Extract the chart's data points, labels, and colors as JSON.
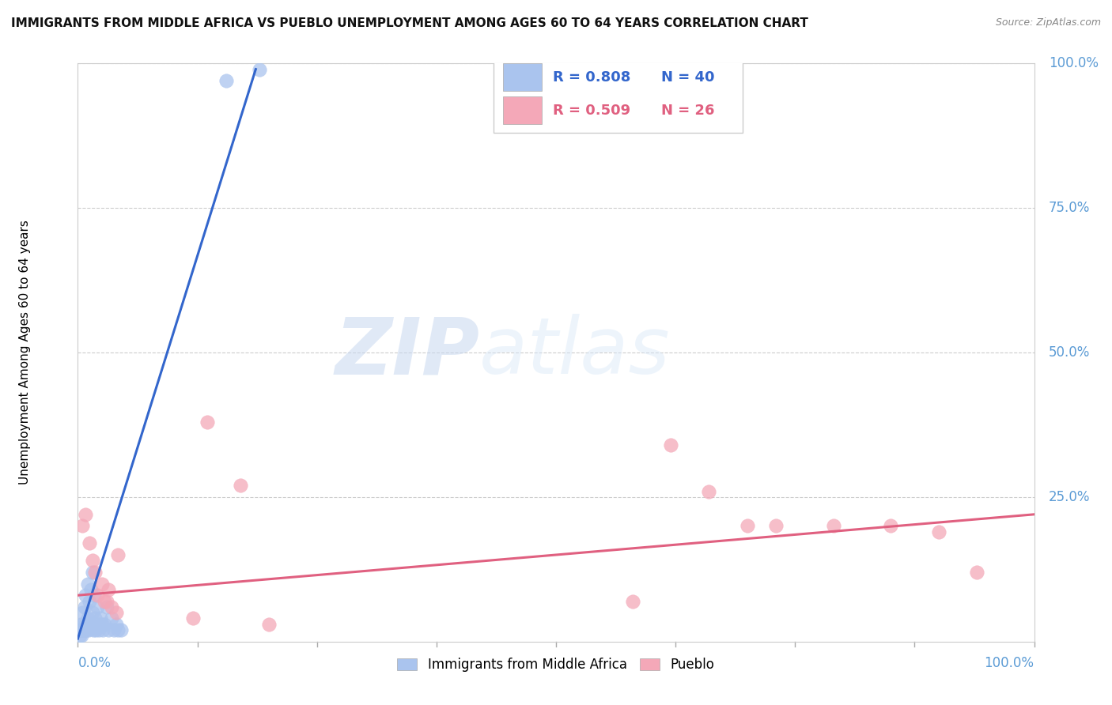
{
  "title": "IMMIGRANTS FROM MIDDLE AFRICA VS PUEBLO UNEMPLOYMENT AMONG AGES 60 TO 64 YEARS CORRELATION CHART",
  "source": "Source: ZipAtlas.com",
  "ylabel": "Unemployment Among Ages 60 to 64 years",
  "blue_R": 0.808,
  "blue_N": 40,
  "pink_R": 0.509,
  "pink_N": 26,
  "blue_color": "#aac4ee",
  "pink_color": "#f4a8b8",
  "blue_line_color": "#3366cc",
  "pink_line_color": "#e06080",
  "legend_blue_label": "Immigrants from Middle Africa",
  "legend_pink_label": "Pueblo",
  "blue_scatter_x": [
    0.002,
    0.003,
    0.003,
    0.004,
    0.004,
    0.005,
    0.005,
    0.006,
    0.007,
    0.008,
    0.008,
    0.009,
    0.01,
    0.01,
    0.011,
    0.012,
    0.013,
    0.014,
    0.015,
    0.015,
    0.016,
    0.017,
    0.018,
    0.019,
    0.02,
    0.021,
    0.022,
    0.024,
    0.025,
    0.026,
    0.028,
    0.03,
    0.032,
    0.035,
    0.038,
    0.04,
    0.042,
    0.045,
    0.155,
    0.19
  ],
  "blue_scatter_y": [
    0.01,
    0.02,
    0.03,
    0.01,
    0.02,
    0.03,
    0.05,
    0.02,
    0.06,
    0.03,
    0.08,
    0.02,
    0.04,
    0.1,
    0.02,
    0.07,
    0.03,
    0.09,
    0.05,
    0.12,
    0.02,
    0.08,
    0.04,
    0.02,
    0.06,
    0.03,
    0.02,
    0.04,
    0.03,
    0.02,
    0.03,
    0.06,
    0.02,
    0.04,
    0.02,
    0.03,
    0.02,
    0.02,
    0.97,
    0.99
  ],
  "pink_scatter_x": [
    0.005,
    0.008,
    0.012,
    0.015,
    0.018,
    0.02,
    0.025,
    0.028,
    0.03,
    0.032,
    0.035,
    0.04,
    0.042,
    0.12,
    0.135,
    0.17,
    0.2,
    0.58,
    0.62,
    0.66,
    0.7,
    0.73,
    0.79,
    0.85,
    0.9,
    0.94
  ],
  "pink_scatter_y": [
    0.2,
    0.22,
    0.17,
    0.14,
    0.12,
    0.08,
    0.1,
    0.07,
    0.07,
    0.09,
    0.06,
    0.05,
    0.15,
    0.04,
    0.38,
    0.27,
    0.03,
    0.07,
    0.34,
    0.26,
    0.2,
    0.2,
    0.2,
    0.2,
    0.19,
    0.12
  ],
  "blue_line_x": [
    0.0,
    0.186
  ],
  "blue_line_y": [
    0.005,
    0.99
  ],
  "pink_line_x": [
    0.0,
    1.0
  ],
  "pink_line_y": [
    0.08,
    0.22
  ],
  "xlim": [
    0.0,
    1.0
  ],
  "ylim": [
    0.0,
    1.0
  ],
  "background_color": "#ffffff",
  "grid_color": "#cccccc",
  "title_fontsize": 11,
  "source_fontsize": 9,
  "tick_color": "#5b9bd5",
  "label_color": "#000000"
}
